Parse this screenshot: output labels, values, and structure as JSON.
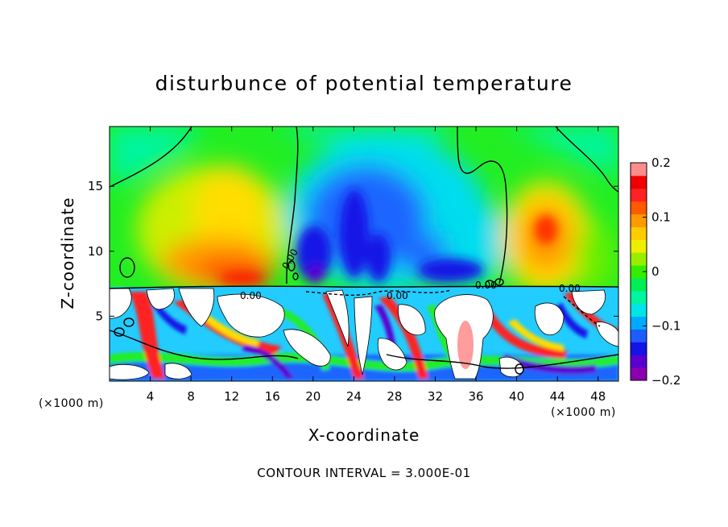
{
  "chart_data": {
    "type": "heatmap",
    "title": "disturbunce of potential temperature",
    "xlabel": "X-coordinate",
    "ylabel": "Z-coordinate",
    "x_unit": "(×1000 m)",
    "y_unit": "(×1000 m)",
    "xlim": [
      0,
      50
    ],
    "ylim": [
      0,
      19.6
    ],
    "x_ticks": [
      4,
      8,
      12,
      16,
      20,
      24,
      28,
      32,
      36,
      40,
      44,
      48
    ],
    "x_tick_labels": [
      "4",
      "8",
      "12",
      "16",
      "20",
      "24",
      "28",
      "32",
      "36",
      "40",
      "44",
      "48"
    ],
    "y_ticks": [
      5,
      10,
      15
    ],
    "y_tick_labels": [
      "5",
      "10",
      "15"
    ],
    "colorbar": {
      "min": -0.2,
      "max": 0.2,
      "ticks": [
        0.2,
        0.1,
        0,
        -0.1,
        -0.2
      ],
      "tick_labels": [
        "0.2",
        "0.1",
        "0",
        "−0.1",
        "−0.2"
      ],
      "colors": [
        "#8a00b0",
        "#5a00d0",
        "#1414e6",
        "#1e5cff",
        "#00aaff",
        "#00e6e6",
        "#00f5a0",
        "#00ee55",
        "#33ee00",
        "#99ee00",
        "#eeee00",
        "#ffcc00",
        "#ff9900",
        "#ff5a00",
        "#ff2222",
        "#ee0000",
        "#ff8c8c"
      ]
    },
    "contour_labels": [
      "0.00",
      "0.00",
      "0.00",
      "0.00",
      "0.00"
    ],
    "footer": "CONTOUR INTERVAL = 3.000E-01",
    "features": [
      {
        "x": 11,
        "z": 10.5,
        "value": 0.15
      },
      {
        "x": 21,
        "z": 10,
        "value": -0.15
      },
      {
        "x": 27.5,
        "z": 12.5,
        "value": -0.13
      },
      {
        "x": 43,
        "z": 12,
        "value": 0.14
      }
    ]
  }
}
